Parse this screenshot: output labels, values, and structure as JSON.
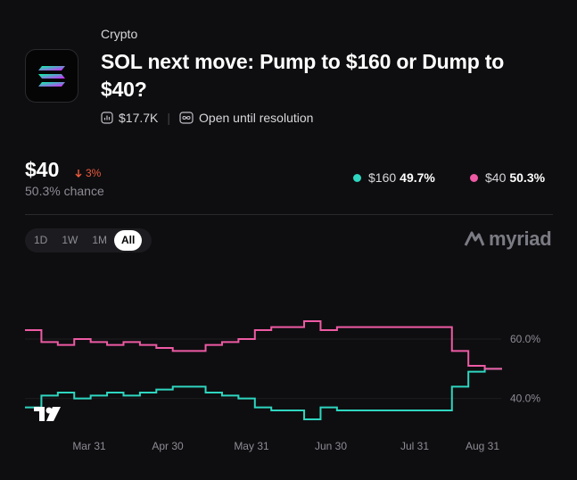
{
  "market": {
    "category": "Crypto",
    "title": "SOL next move: Pump to $160 or Dump to $40?",
    "volume": "$17.7K",
    "status": "Open until resolution"
  },
  "summary": {
    "price": "$40",
    "change": "3%",
    "chance": "50.3% chance"
  },
  "legend": [
    {
      "label": "$160",
      "value": "49.7%",
      "color": "#2ed6c0"
    },
    {
      "label": "$40",
      "value": "50.3%",
      "color": "#ee5aa4"
    }
  ],
  "ranges": [
    "1D",
    "1W",
    "1M",
    "All"
  ],
  "selected_range": "All",
  "brand": "myriad",
  "chart_data": {
    "type": "line",
    "x": [
      "Mar 14",
      "Mar 20",
      "Mar 26",
      "Apr 1",
      "Apr 7",
      "Apr 13",
      "Apr 19",
      "Apr 25",
      "May 1",
      "May 7",
      "May 13",
      "May 19",
      "May 25",
      "May 31",
      "Jun 6",
      "Jun 12",
      "Jun 18",
      "Jun 24",
      "Jun 30",
      "Jul 6",
      "Jul 12",
      "Jul 18",
      "Jul 24",
      "Jul 30",
      "Aug 5",
      "Aug 11",
      "Aug 17",
      "Aug 23",
      "Aug 29",
      "Aug 31"
    ],
    "x_ticks": [
      "Mar 31",
      "Apr 30",
      "May 31",
      "Jun 30",
      "Jul 31",
      "Aug 31"
    ],
    "y_ticks": [
      "40.0%",
      "60.0%"
    ],
    "ylim": [
      30,
      75
    ],
    "series": [
      {
        "name": "$160",
        "color": "#2ed6c0",
        "values": [
          37,
          41,
          42,
          40,
          41,
          42,
          41,
          42,
          43,
          44,
          44,
          42,
          41,
          40,
          37,
          36,
          36,
          33,
          37,
          36,
          36,
          36,
          36,
          36,
          36,
          36,
          44,
          49,
          50,
          49.7
        ]
      },
      {
        "name": "$40",
        "color": "#ee5aa4",
        "values": [
          63,
          59,
          58,
          60,
          59,
          58,
          59,
          58,
          57,
          56,
          56,
          58,
          59,
          60,
          63,
          64,
          64,
          66,
          63,
          64,
          64,
          64,
          64,
          64,
          64,
          64,
          56,
          51,
          50,
          50.3
        ]
      }
    ]
  }
}
